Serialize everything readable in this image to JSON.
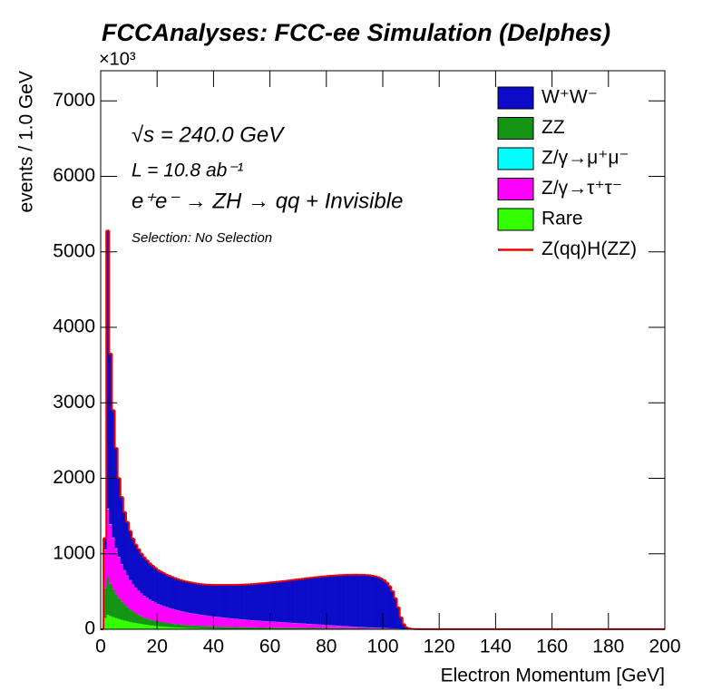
{
  "chart_data": {
    "type": "stacked_histogram",
    "title": "FCCAnalyses: FCC-ee Simulation (Delphes)",
    "y_exponent_label": "×10³",
    "xlabel": "Electron Momentum [GeV]",
    "ylabel": "events / 1.0 GeV",
    "annotations": [
      "√s = 240.0 GeV",
      "L = 10.8 ab⁻¹",
      "e⁺e⁻ → ZH → qq + Invisible",
      "Selection: No Selection"
    ],
    "xlim": [
      0,
      200
    ],
    "ylim": [
      0,
      7400
    ],
    "xticks": [
      0,
      20,
      40,
      60,
      80,
      100,
      120,
      140,
      160,
      180,
      200
    ],
    "yticks": [
      0,
      1000,
      2000,
      3000,
      4000,
      5000,
      6000,
      7000
    ],
    "legend": "upper right",
    "bins": [
      0,
      1,
      2,
      3,
      4,
      5,
      6,
      7,
      8,
      9,
      10,
      11,
      12,
      13,
      14,
      15,
      16,
      17,
      18,
      19,
      20,
      21,
      22,
      23,
      24,
      25,
      26,
      27,
      28,
      29,
      30,
      31,
      32,
      33,
      34,
      35,
      36,
      37,
      38,
      39,
      40,
      41,
      42,
      43,
      44,
      45,
      46,
      47,
      48,
      49,
      50,
      51,
      52,
      53,
      54,
      55,
      56,
      57,
      58,
      59,
      60,
      61,
      62,
      63,
      64,
      65,
      66,
      67,
      68,
      69,
      70,
      71,
      72,
      73,
      74,
      75,
      76,
      77,
      78,
      79,
      80,
      81,
      82,
      83,
      84,
      85,
      86,
      87,
      88,
      89,
      90,
      91,
      92,
      93,
      94,
      95,
      96,
      97,
      98,
      99,
      100,
      101,
      102,
      103,
      104,
      105,
      106,
      107,
      108,
      109,
      110,
      111,
      112
    ],
    "series": [
      {
        "name": "W⁺W⁻",
        "color": "#0c0cc8",
        "values": [
          0,
          150,
          3680,
          2257,
          1684,
          1327,
          1040,
          886,
          767,
          706,
          649,
          603,
          569,
          550,
          526,
          508,
          494,
          478,
          469,
          458,
          445,
          440,
          434,
          427,
          425,
          420,
          415,
          412,
          409,
          408,
          405,
          405,
          404,
          403,
          403,
          404,
          406,
          408,
          412,
          415,
          418,
          423,
          426,
          431,
          434,
          439,
          442,
          447,
          450,
          455,
          460,
          465,
          470,
          476,
          482,
          488,
          494,
          499,
          505,
          511,
          517,
          523,
          529,
          535,
          542,
          548,
          555,
          562,
          569,
          576,
          583,
          590,
          597,
          604,
          611,
          617,
          624,
          630,
          636,
          642,
          648,
          653,
          658,
          663,
          668,
          672,
          676,
          680,
          683,
          686,
          688,
          690,
          691,
          691,
          690,
          688,
          683,
          676,
          666,
          652,
          630,
          600,
          555,
          490,
          400,
          280,
          150,
          60,
          20,
          8,
          3,
          1
        ]
      },
      {
        "name": "ZZ",
        "color": "#139513",
        "values": [
          0,
          400,
          500,
          430,
          370,
          320,
          280,
          245,
          215,
          190,
          166,
          145,
          128,
          114,
          102,
          92,
          84,
          77,
          71,
          66,
          62,
          58,
          55,
          52,
          49,
          47,
          45,
          43,
          41,
          39,
          38,
          37,
          36,
          35,
          34,
          33,
          32,
          31,
          30,
          30,
          29,
          28,
          28,
          27,
          27,
          26,
          26,
          25,
          25,
          24,
          24,
          23,
          23,
          22,
          22,
          21,
          21,
          21,
          20,
          20,
          20,
          19,
          19,
          19,
          18,
          18,
          18,
          17,
          17,
          17,
          16,
          16,
          16,
          15,
          15,
          15,
          14,
          14,
          14,
          13,
          13,
          13,
          12,
          12,
          12,
          11,
          11,
          11,
          10,
          10,
          10,
          9,
          9,
          9,
          8,
          8,
          8,
          7,
          7,
          7,
          6,
          6,
          5,
          5,
          4,
          4,
          3,
          3,
          2,
          2,
          1,
          1
        ]
      },
      {
        "name": "Z/γ→μ⁺μ⁻",
        "color": "#00ffff",
        "values": [
          0,
          5,
          10,
          8,
          6,
          5,
          4,
          4,
          3,
          3,
          3,
          2,
          2,
          2,
          2,
          2,
          2,
          2,
          2,
          2,
          2,
          2,
          2,
          2,
          2,
          2,
          2,
          2,
          2,
          2,
          2,
          2,
          2,
          2,
          2,
          2,
          2,
          2,
          2,
          2,
          2,
          2,
          2,
          2,
          2,
          2,
          2,
          2,
          2,
          2,
          2,
          2,
          2,
          2,
          2,
          2,
          2,
          2,
          2,
          2,
          2,
          2,
          2,
          2,
          2,
          2,
          2,
          2,
          2,
          2,
          2,
          2,
          2,
          2,
          2,
          2,
          2,
          2,
          2,
          2,
          2,
          2,
          2,
          2,
          2,
          2,
          2,
          2,
          2,
          2,
          2,
          2,
          2,
          2,
          2,
          2,
          2,
          2,
          2,
          2,
          2,
          2,
          1,
          1,
          1,
          1,
          1,
          0,
          0,
          0,
          0,
          0
        ]
      },
      {
        "name": "Z/γ→τ⁺τ⁻",
        "color": "#ff00ff",
        "values": [
          0,
          500,
          900,
          780,
          680,
          600,
          540,
          490,
          450,
          415,
          385,
          360,
          338,
          318,
          300,
          285,
          272,
          260,
          249,
          239,
          230,
          222,
          214,
          207,
          200,
          194,
          188,
          182,
          177,
          172,
          167,
          162,
          158,
          154,
          150,
          146,
          142,
          139,
          135,
          132,
          129,
          126,
          123,
          120,
          117,
          114,
          111,
          108,
          106,
          103,
          100,
          98,
          95,
          93,
          90,
          88,
          86,
          84,
          82,
          80,
          78,
          76,
          74,
          72,
          70,
          68,
          66,
          64,
          62,
          60,
          58,
          56,
          54,
          52,
          50,
          48,
          46,
          44,
          42,
          40,
          38,
          36,
          34,
          32,
          30,
          28,
          26,
          24,
          22,
          20,
          18,
          16,
          15,
          14,
          13,
          12,
          11,
          10,
          9,
          8,
          7,
          6,
          5,
          4,
          3,
          2,
          2,
          1,
          1,
          0,
          0,
          0
        ]
      },
      {
        "name": "Rare",
        "color": "#33ff00",
        "values": [
          0,
          150,
          190,
          175,
          160,
          148,
          136,
          125,
          115,
          106,
          97,
          89,
          82,
          75,
          69,
          63,
          58,
          53,
          49,
          45,
          41,
          38,
          35,
          32,
          29,
          27,
          25,
          23,
          21,
          19,
          18,
          16,
          15,
          14,
          13,
          12,
          11,
          10,
          9,
          8,
          8,
          7,
          7,
          6,
          6,
          5,
          5,
          5,
          4,
          4,
          4,
          4,
          3,
          3,
          3,
          3,
          3,
          3,
          3,
          3,
          3,
          3,
          3,
          3,
          3,
          3,
          3,
          3,
          3,
          3,
          3,
          3,
          3,
          3,
          3,
          3,
          3,
          3,
          3,
          3,
          3,
          3,
          3,
          3,
          3,
          3,
          3,
          3,
          3,
          3,
          3,
          3,
          3,
          3,
          3,
          3,
          3,
          3,
          3,
          3,
          3,
          2,
          2,
          2,
          2,
          2,
          1,
          1,
          1,
          1,
          0,
          0
        ]
      },
      {
        "name": "Z(qq)H(ZZ)",
        "color": "#ee0000",
        "line": true,
        "values": [
          0,
          2,
          2,
          2,
          2,
          2,
          2,
          2,
          2,
          2,
          2,
          2,
          2,
          2,
          2,
          2,
          2,
          2,
          2,
          2,
          2,
          2,
          2,
          2,
          2,
          2,
          2,
          2,
          2,
          2,
          2,
          2,
          2,
          2,
          2,
          2,
          2,
          2,
          2,
          2,
          2,
          2,
          2,
          2,
          2,
          2,
          2,
          2,
          2,
          2,
          2,
          2,
          2,
          2,
          2,
          2,
          2,
          2,
          2,
          2,
          2,
          2,
          2,
          2,
          2,
          2,
          2,
          2,
          2,
          2,
          2,
          2,
          2,
          2,
          2,
          2,
          2,
          2,
          2,
          2,
          2,
          2,
          2,
          2,
          2,
          2,
          2,
          2,
          2,
          2,
          2,
          2,
          2,
          2,
          2,
          2,
          2,
          2,
          2,
          2,
          2,
          2,
          2,
          2,
          2,
          2,
          2,
          2,
          1,
          1,
          0,
          0
        ]
      }
    ]
  }
}
